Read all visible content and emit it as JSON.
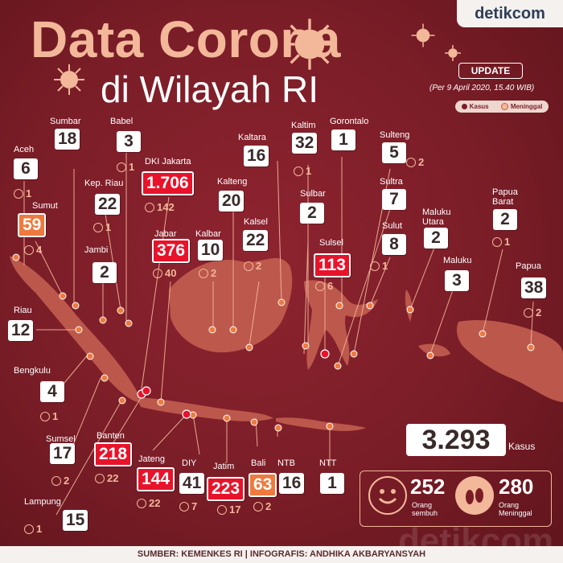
{
  "brand": "detikcom",
  "title": {
    "line1": "Data Corona",
    "line2": "di Wilayah RI"
  },
  "update": {
    "badge": "UPDATE",
    "date": "(Per 9 April 2020, 15.40 WIB)"
  },
  "legend": {
    "cases": "Kasus",
    "deaths": "Meninggal"
  },
  "colors": {
    "background": "#7a1d27",
    "accent": "#f3b79a",
    "highlight_red": "#e8132a",
    "highlight_orange": "#ee7a3e"
  },
  "provinces": [
    {
      "id": "aceh",
      "name": "Aceh",
      "cases": "6",
      "deaths": "1",
      "style": "white"
    },
    {
      "id": "sumut",
      "name": "Sumut",
      "cases": "59",
      "deaths": "4",
      "style": "orange"
    },
    {
      "id": "riau",
      "name": "Riau",
      "cases": "12",
      "deaths": null,
      "style": "white"
    },
    {
      "id": "bengkulu",
      "name": "Bengkulu",
      "cases": "4",
      "deaths": "1",
      "style": "white"
    },
    {
      "id": "sumsel",
      "name": "Sumsel",
      "cases": "17",
      "deaths": "2",
      "style": "white"
    },
    {
      "id": "lampung",
      "name": "Lampung",
      "cases": "15",
      "deaths": "1",
      "style": "white"
    },
    {
      "id": "sumbar",
      "name": "Sumbar",
      "cases": "18",
      "deaths": null,
      "style": "white"
    },
    {
      "id": "kepriau",
      "name": "Kep. Riau",
      "cases": "22",
      "deaths": "1",
      "style": "white"
    },
    {
      "id": "jambi",
      "name": "Jambi",
      "cases": "2",
      "deaths": null,
      "style": "white"
    },
    {
      "id": "babel",
      "name": "Babel",
      "cases": "3",
      "deaths": "1",
      "style": "white"
    },
    {
      "id": "dki",
      "name": "DKI Jakarta",
      "cases": "1.706",
      "deaths": "142",
      "style": "red"
    },
    {
      "id": "jabar",
      "name": "Jabar",
      "cases": "376",
      "deaths": "40",
      "style": "red"
    },
    {
      "id": "kalbar",
      "name": "Kalbar",
      "cases": "10",
      "deaths": "2",
      "style": "white"
    },
    {
      "id": "banten",
      "name": "Banten",
      "cases": "218",
      "deaths": "22",
      "style": "red"
    },
    {
      "id": "jateng",
      "name": "Jateng",
      "cases": "144",
      "deaths": "22",
      "style": "red"
    },
    {
      "id": "diy",
      "name": "DIY",
      "cases": "41",
      "deaths": "7",
      "style": "white"
    },
    {
      "id": "jatim",
      "name": "Jatim",
      "cases": "223",
      "deaths": "17",
      "style": "red"
    },
    {
      "id": "bali",
      "name": "Bali",
      "cases": "63",
      "deaths": "2",
      "style": "orange"
    },
    {
      "id": "ntb",
      "name": "NTB",
      "cases": "16",
      "deaths": null,
      "style": "white"
    },
    {
      "id": "ntt",
      "name": "NTT",
      "cases": "1",
      "deaths": null,
      "style": "white"
    },
    {
      "id": "kaltara",
      "name": "Kaltara",
      "cases": "16",
      "deaths": null,
      "style": "white"
    },
    {
      "id": "kalteng",
      "name": "Kalteng",
      "cases": "20",
      "deaths": null,
      "style": "white"
    },
    {
      "id": "kalsel",
      "name": "Kalsel",
      "cases": "22",
      "deaths": "2",
      "style": "white"
    },
    {
      "id": "kaltim",
      "name": "Kaltim",
      "cases": "32",
      "deaths": "1",
      "style": "white"
    },
    {
      "id": "sulbar",
      "name": "Sulbar",
      "cases": "2",
      "deaths": null,
      "style": "white"
    },
    {
      "id": "sulsel",
      "name": "Sulsel",
      "cases": "113",
      "deaths": "6",
      "style": "red"
    },
    {
      "id": "gorontalo",
      "name": "Gorontalo",
      "cases": "1",
      "deaths": null,
      "style": "white"
    },
    {
      "id": "sulteng",
      "name": "Sulteng",
      "cases": "5",
      "deaths": "2",
      "style": "white"
    },
    {
      "id": "sultra",
      "name": "Sultra",
      "cases": "7",
      "deaths": null,
      "style": "white"
    },
    {
      "id": "sulut",
      "name": "Sulut",
      "cases": "8",
      "deaths": "1",
      "style": "white"
    },
    {
      "id": "malut",
      "name": "Maluku\nUtara",
      "cases": "2",
      "deaths": null,
      "style": "white"
    },
    {
      "id": "maluku",
      "name": "Maluku",
      "cases": "3",
      "deaths": null,
      "style": "white"
    },
    {
      "id": "pabar",
      "name": "Papua\nBarat",
      "cases": "2",
      "deaths": "1",
      "style": "white"
    },
    {
      "id": "papua",
      "name": "Papua",
      "cases": "38",
      "deaths": "2",
      "style": "white"
    }
  ],
  "totals": {
    "cases": "3.293",
    "cases_unit": "Kasus",
    "recovered": "252",
    "recovered_label": "Orang\nsembuh",
    "deaths": "280",
    "deaths_label": "Orang\nMeninggal"
  },
  "watermark": "detikcom",
  "footer": "SUMBER: KEMENKES RI | INFOGRAFIS: ANDHIKA AKBARYANSYAH"
}
